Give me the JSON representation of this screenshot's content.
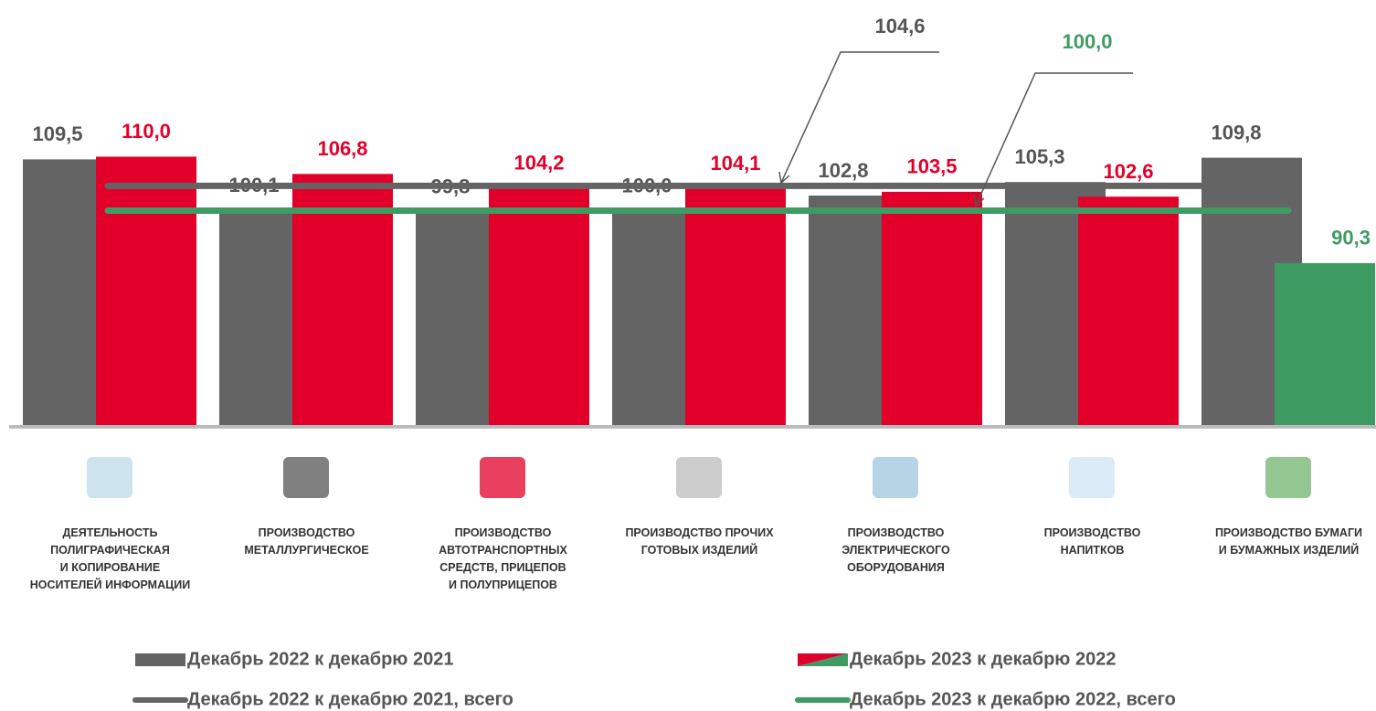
{
  "chart_data": {
    "type": "bar",
    "categories": [
      "ДЕЯТЕЛЬНОСТЬ\nПОЛИГРАФИЧЕСКАЯ\nИ КОПИРОВАНИЕ\nНОСИТЕЛЕЙ ИНФОРМАЦИИ",
      "ПРОИЗВОДСТВО\nМЕТАЛЛУРГИЧЕСКОЕ",
      "ПРОИЗВОДСТВО\nАВТОТРАНСПОРТНЫХ\nСРЕДСТВ, ПРИЦЕПОВ\nИ ПОЛУПРИЦЕПОВ",
      "ПРОИЗВОДСТВО ПРОЧИХ\nГОТОВЫХ ИЗДЕЛИЙ",
      "ПРОИЗВОДСТВО\nЭЛЕКТРИЧЕСКОГО\nОБОРУДОВАНИЯ",
      "ПРОИЗВОДСТВО\nНАПИТКОВ",
      "ПРОИЗВОДСТВО БУМАГИ\nИ БУМАЖНЫХ ИЗДЕЛИЙ"
    ],
    "series": [
      {
        "name": "Декабрь 2022 к декабрю 2021",
        "color": "#646464",
        "values": [
          109.5,
          100.1,
          99.8,
          100.0,
          102.8,
          105.3,
          109.8
        ],
        "value_labels": [
          "109,5",
          "100,1",
          "99,8",
          "100,0",
          "102,8",
          "105,3",
          "109,8"
        ]
      },
      {
        "name": "Декабрь 2023 к декабрю 2022",
        "color": "#e2002b",
        "colors": [
          "#e2002b",
          "#e2002b",
          "#e2002b",
          "#e2002b",
          "#e2002b",
          "#e2002b",
          "#3e9b62"
        ],
        "values": [
          110.0,
          106.8,
          104.2,
          104.1,
          103.5,
          102.6,
          90.3
        ],
        "value_labels": [
          "110,0",
          "106,8",
          "104,2",
          "104,1",
          "103,5",
          "102,6",
          "90,3"
        ]
      }
    ],
    "reference_lines": [
      {
        "name": "Декабрь 2022 к декабрю 2021, всего",
        "color": "#646464",
        "value": 104.6,
        "value_label": "104,6"
      },
      {
        "name": "Декабрь 2023 к декабрю 2022, всего",
        "color": "#3e9b62",
        "value": 100.0,
        "value_label": "100,0"
      }
    ],
    "ylim": [
      60,
      139
    ]
  }
}
